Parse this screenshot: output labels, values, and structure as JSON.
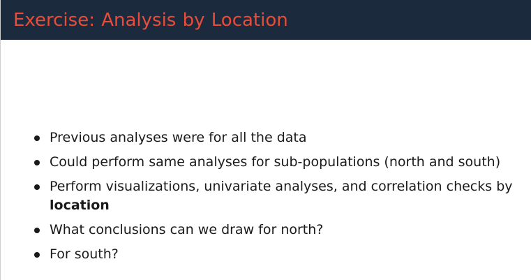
{
  "slide": {
    "title": "Exercise:  Analysis by Location",
    "bullets": [
      {
        "text": "Previous analyses were for all the data"
      },
      {
        "text": "Could perform same analyses for sub-populations (north and south)"
      },
      {
        "text": "Perform visualizations, univariate analyses, and correlation checks by",
        "emphasis": "location"
      },
      {
        "text": "What conclusions can we draw for north?"
      },
      {
        "text": "For south?"
      }
    ]
  },
  "colors": {
    "title_bar": "#1b2a3c",
    "title_text": "#e94c38",
    "body_text": "#1a1a1a",
    "background": "#ffffff"
  }
}
